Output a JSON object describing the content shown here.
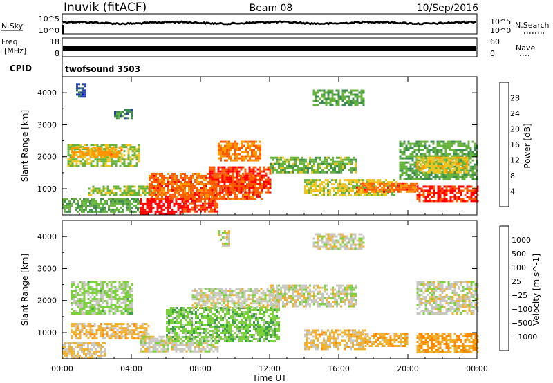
{
  "header": {
    "station": "Inuvik (fitACF)",
    "beam": "Beam 08",
    "date": "10/Sep/2016"
  },
  "top_panels": {
    "nsky": {
      "label": "N.Sky",
      "right_label": "N.Search",
      "left_ticks": [
        "10^5",
        "10^0"
      ],
      "right_ticks": [
        "10^5",
        "10^0"
      ]
    },
    "freq": {
      "label_line1": "Freq.",
      "label_line2": "[MHz]",
      "right_label": "Nave",
      "left_ticks": [
        "18",
        "8"
      ],
      "right_ticks": [
        "60",
        "0"
      ]
    },
    "cpid": {
      "label": "CPID",
      "program": "twofsound 3503"
    }
  },
  "chart_data": [
    {
      "type": "heatmap",
      "title": "",
      "xlabel": "",
      "ylabel": "Slant Range [km]",
      "x_ticks": [
        "00:00",
        "04:00",
        "08:00",
        "12:00",
        "16:00",
        "20:00",
        "00:00"
      ],
      "xlim_hours": [
        0,
        24
      ],
      "y_ticks": [
        1000,
        2000,
        3000,
        4000
      ],
      "ylim_km": [
        180,
        4500
      ],
      "colorbar": {
        "label": "Power [dB]",
        "ticks": [
          "4",
          "8",
          "12",
          "16",
          "20",
          "24",
          "28"
        ],
        "range": [
          0,
          30
        ],
        "colors": [
          "#0000ff",
          "#2a46a8",
          "#3c8c50",
          "#66b33c",
          "#f0c41e",
          "#ff9600",
          "#ff5a00",
          "#ff0000"
        ]
      },
      "regions": [
        {
          "x": [
            0.0,
            4.5
          ],
          "y": [
            300,
            700
          ],
          "value": 12
        },
        {
          "x": [
            1.5,
            5.5
          ],
          "y": [
            800,
            1100
          ],
          "value": 14
        },
        {
          "x": [
            0.3,
            4.5
          ],
          "y": [
            1700,
            2400
          ],
          "value": 14
        },
        {
          "x": [
            0.5,
            3.5
          ],
          "y": [
            2000,
            2300
          ],
          "value": 20
        },
        {
          "x": [
            4.5,
            7.0
          ],
          "y": [
            200,
            700
          ],
          "value": 29
        },
        {
          "x": [
            7.0,
            9.0
          ],
          "y": [
            300,
            900
          ],
          "value": 26
        },
        {
          "x": [
            5.0,
            11.5
          ],
          "y": [
            700,
            1500
          ],
          "value": 24
        },
        {
          "x": [
            8.5,
            12.0
          ],
          "y": [
            900,
            1700
          ],
          "value": 26
        },
        {
          "x": [
            9.0,
            11.5
          ],
          "y": [
            1900,
            2500
          ],
          "value": 22
        },
        {
          "x": [
            12.0,
            17.0
          ],
          "y": [
            1500,
            2000
          ],
          "value": 13
        },
        {
          "x": [
            14.0,
            19.5
          ],
          "y": [
            800,
            1300
          ],
          "value": 16
        },
        {
          "x": [
            17.0,
            20.5
          ],
          "y": [
            900,
            1200
          ],
          "value": 24
        },
        {
          "x": [
            20.5,
            24.0
          ],
          "y": [
            600,
            1100
          ],
          "value": 27
        },
        {
          "x": [
            19.5,
            24.0
          ],
          "y": [
            1300,
            2500
          ],
          "value": 12
        },
        {
          "x": [
            20.5,
            23.5
          ],
          "y": [
            1500,
            2000
          ],
          "value": 17
        },
        {
          "x": [
            14.5,
            17.5
          ],
          "y": [
            3600,
            4100
          ],
          "value": 12
        },
        {
          "x": [
            3.0,
            4.0
          ],
          "y": [
            3200,
            3500
          ],
          "value": 9
        },
        {
          "x": [
            0.8,
            1.4
          ],
          "y": [
            3900,
            4300
          ],
          "value": 6
        }
      ]
    },
    {
      "type": "heatmap",
      "title": "",
      "xlabel": "Time UT",
      "ylabel": "Slant Range [km]",
      "x_ticks": [
        "00:00",
        "04:00",
        "08:00",
        "12:00",
        "16:00",
        "20:00",
        "00:00"
      ],
      "xlim_hours": [
        0,
        24
      ],
      "y_ticks": [
        1000,
        2000,
        3000,
        4000
      ],
      "ylim_km": [
        180,
        4500
      ],
      "colorbar": {
        "label": "Velocity [m s^-1]",
        "ticks": [
          "1000",
          "500",
          "100",
          "25",
          "−25",
          "−100",
          "−500",
          "−1000"
        ],
        "range": [
          -1200,
          1200
        ],
        "colors": [
          "#2040c8",
          "#2e7d6a",
          "#3fa04a",
          "#7bd23c",
          "#c8c8c0",
          "#f0b030",
          "#ff8a00",
          "#ff5a00",
          "#ff0000"
        ]
      },
      "regions": [
        {
          "x": [
            0.0,
            2.5
          ],
          "y": [
            200,
            700
          ],
          "value": -150
        },
        {
          "x": [
            0.5,
            5.0
          ],
          "y": [
            800,
            1300
          ],
          "value": -250
        },
        {
          "x": [
            0.5,
            4.0
          ],
          "y": [
            1600,
            2600
          ],
          "value": 200
        },
        {
          "x": [
            4.5,
            9.0
          ],
          "y": [
            400,
            900
          ],
          "value": 0
        },
        {
          "x": [
            6.0,
            12.5
          ],
          "y": [
            700,
            1800
          ],
          "value": 300
        },
        {
          "x": [
            7.5,
            12.5
          ],
          "y": [
            1800,
            2400
          ],
          "value": 0
        },
        {
          "x": [
            12.0,
            17.0
          ],
          "y": [
            1800,
            2500
          ],
          "value": 0
        },
        {
          "x": [
            14.0,
            17.5
          ],
          "y": [
            500,
            1100
          ],
          "value": -200
        },
        {
          "x": [
            17.5,
            20.0
          ],
          "y": [
            600,
            1000
          ],
          "value": -300
        },
        {
          "x": [
            20.5,
            24.0
          ],
          "y": [
            400,
            1000
          ],
          "value": -400
        },
        {
          "x": [
            20.5,
            24.0
          ],
          "y": [
            1600,
            2600
          ],
          "value": 0
        },
        {
          "x": [
            14.5,
            17.5
          ],
          "y": [
            3600,
            4100
          ],
          "value": 0
        },
        {
          "x": [
            9.0,
            9.7
          ],
          "y": [
            3700,
            4200
          ],
          "value": 0
        }
      ]
    }
  ]
}
